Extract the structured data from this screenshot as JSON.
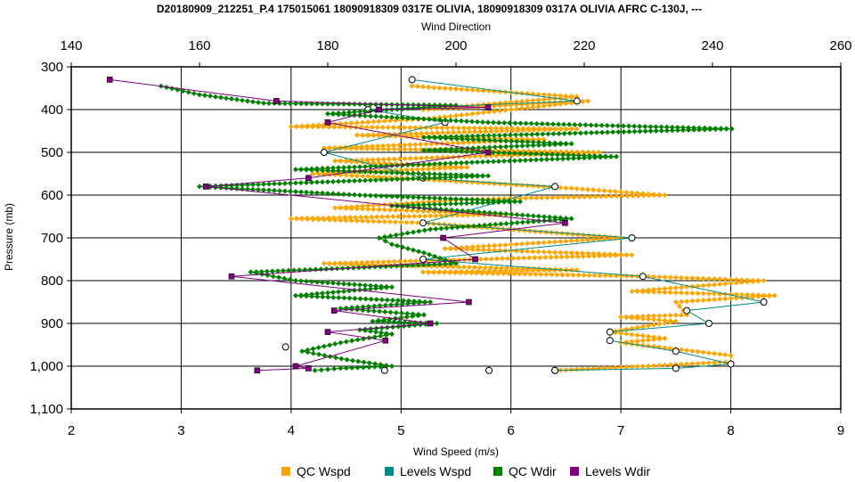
{
  "chart_data": {
    "type": "scatter",
    "title": "D20180909_212251_P.4 175015061 18090918309 0317E OLIVIA, 18090918309 0317A OLIVIA AFRC C-130J, ---",
    "top_axis": {
      "label": "Wind Direction",
      "range": [
        140,
        260
      ],
      "ticks": [
        "140",
        "160",
        "180",
        "200",
        "220",
        "240",
        "260"
      ]
    },
    "bottom_axis": {
      "label": "Wind Speed (m/s)",
      "range": [
        2,
        9
      ],
      "ticks": [
        "2",
        "3",
        "4",
        "5",
        "6",
        "7",
        "8",
        "9"
      ]
    },
    "left_axis": {
      "label": "Pressure (mb)",
      "range": [
        300,
        1100
      ],
      "inverted": true,
      "ticks": [
        "300",
        "400",
        "500",
        "600",
        "700",
        "800",
        "900",
        "1,000",
        "1,100"
      ]
    },
    "grid": true,
    "legend_position": "bottom",
    "series": [
      {
        "name": "QC Wspd",
        "axis": "speed",
        "color": "#FFA500",
        "marker": "diamond",
        "points": [
          [
            5.1,
            345
          ],
          [
            6.6,
            370
          ],
          [
            5.2,
            400
          ],
          [
            6.7,
            380
          ],
          [
            5.3,
            420
          ],
          [
            4.0,
            440
          ],
          [
            6.6,
            445
          ],
          [
            4.6,
            460
          ],
          [
            6.3,
            470
          ],
          [
            4.3,
            490
          ],
          [
            6.8,
            500
          ],
          [
            4.4,
            520
          ],
          [
            5.6,
            535
          ],
          [
            4.2,
            550
          ],
          [
            5.0,
            560
          ],
          [
            6.6,
            585
          ],
          [
            7.4,
            600
          ],
          [
            5.6,
            610
          ],
          [
            4.4,
            630
          ],
          [
            6.0,
            645
          ],
          [
            4.0,
            655
          ],
          [
            5.2,
            665
          ],
          [
            7.0,
            700
          ],
          [
            5.4,
            725
          ],
          [
            7.1,
            740
          ],
          [
            4.3,
            760
          ],
          [
            6.6,
            775
          ],
          [
            5.2,
            780
          ],
          [
            7.2,
            790
          ],
          [
            8.3,
            800
          ],
          [
            7.1,
            825
          ],
          [
            8.4,
            835
          ],
          [
            7.5,
            850
          ],
          [
            7.6,
            880
          ],
          [
            7.0,
            885
          ],
          [
            7.5,
            895
          ],
          [
            6.9,
            920
          ],
          [
            7.4,
            935
          ],
          [
            7.0,
            945
          ],
          [
            7.5,
            960
          ],
          [
            8.0,
            975
          ],
          [
            8.0,
            990
          ],
          [
            6.4,
            1010
          ]
        ]
      },
      {
        "name": "Levels Wspd",
        "axis": "speed",
        "color": "#008B8B",
        "marker": "circle",
        "points": [
          [
            5.1,
            330
          ],
          [
            6.6,
            380
          ],
          [
            4.7,
            400
          ],
          [
            5.4,
            430
          ],
          [
            4.3,
            500
          ],
          [
            5.2,
            560
          ],
          [
            6.4,
            580
          ],
          [
            5.2,
            665
          ],
          [
            7.1,
            700
          ],
          [
            5.2,
            750
          ],
          [
            7.2,
            790
          ],
          [
            8.3,
            850
          ],
          [
            7.6,
            870
          ],
          [
            7.8,
            900
          ],
          [
            6.9,
            920
          ],
          [
            6.9,
            940
          ],
          [
            7.5,
            965
          ],
          [
            8.0,
            995
          ],
          [
            7.5,
            1005
          ],
          [
            6.4,
            1010
          ]
        ]
      },
      {
        "name": "QC Wdir",
        "axis": "direction",
        "color": "#008000",
        "marker": "diamond",
        "points": [
          [
            154,
            345
          ],
          [
            160,
            365
          ],
          [
            170,
            385
          ],
          [
            200,
            390
          ],
          [
            180,
            410
          ],
          [
            205,
            430
          ],
          [
            243,
            445
          ],
          [
            195,
            465
          ],
          [
            218,
            480
          ],
          [
            195,
            495
          ],
          [
            225,
            510
          ],
          [
            175,
            540
          ],
          [
            205,
            555
          ],
          [
            160,
            580
          ],
          [
            185,
            600
          ],
          [
            210,
            615
          ],
          [
            190,
            625
          ],
          [
            218,
            655
          ],
          [
            196,
            680
          ],
          [
            188,
            700
          ],
          [
            190,
            715
          ],
          [
            195,
            735
          ],
          [
            200,
            760
          ],
          [
            168,
            780
          ],
          [
            175,
            800
          ],
          [
            190,
            815
          ],
          [
            175,
            835
          ],
          [
            196,
            850
          ],
          [
            182,
            865
          ],
          [
            195,
            880
          ],
          [
            187,
            895
          ],
          [
            197,
            900
          ],
          [
            185,
            915
          ],
          [
            190,
            925
          ],
          [
            182,
            945
          ],
          [
            176,
            965
          ],
          [
            183,
            985
          ],
          [
            190,
            1000
          ],
          [
            182,
            1005
          ],
          [
            178,
            1010
          ]
        ]
      },
      {
        "name": "Levels Wdir",
        "axis": "direction",
        "color": "#800080",
        "marker": "square",
        "points": [
          [
            146,
            330
          ],
          [
            172,
            380
          ],
          [
            205,
            395
          ],
          [
            188,
            400
          ],
          [
            180,
            430
          ],
          [
            205,
            500
          ],
          [
            177,
            560
          ],
          [
            161,
            580
          ],
          [
            217,
            665
          ],
          [
            198,
            700
          ],
          [
            203,
            750
          ],
          [
            165,
            790
          ],
          [
            202,
            850
          ],
          [
            181,
            870
          ],
          [
            196,
            900
          ],
          [
            180,
            920
          ],
          [
            189,
            940
          ],
          [
            175,
            1000
          ],
          [
            177,
            1005
          ],
          [
            169,
            1010
          ]
        ]
      }
    ],
    "extra_markers": [
      [
        3.95,
        955
      ],
      [
        4.85,
        1010
      ],
      [
        5.8,
        1010
      ],
      [
        6.4,
        1010
      ]
    ]
  }
}
